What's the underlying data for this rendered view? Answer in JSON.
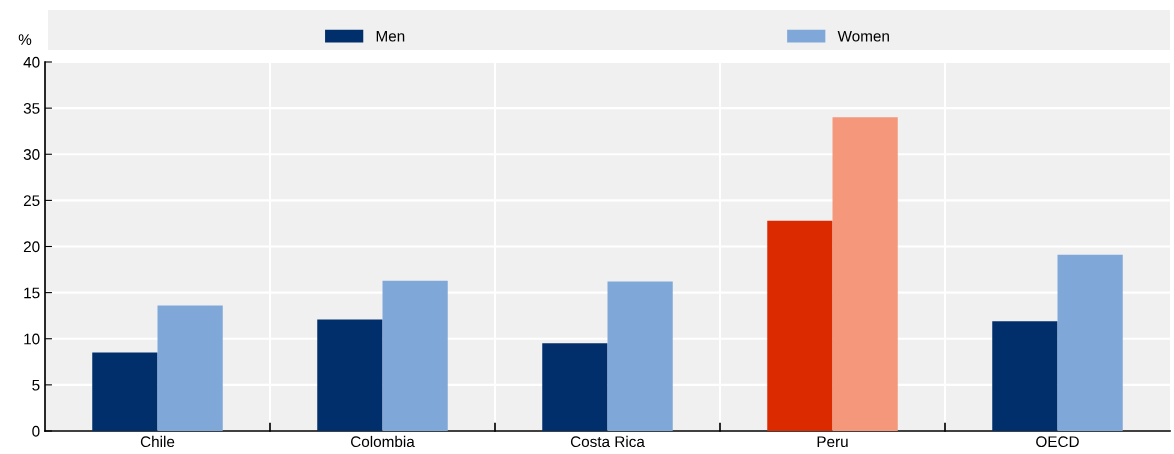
{
  "chart_data": {
    "type": "bar",
    "ylabel": "%",
    "categories": [
      "Chile",
      "Colombia",
      "Costa Rica",
      "Peru",
      "OECD"
    ],
    "series": [
      {
        "name": "Men",
        "color": "#002f6c",
        "colors": [
          "#002f6c",
          "#002f6c",
          "#002f6c",
          "#dc2a00",
          "#002f6c"
        ],
        "values": [
          8.5,
          12.1,
          9.5,
          22.8,
          11.9
        ]
      },
      {
        "name": "Women",
        "color": "#7fa8d9",
        "colors": [
          "#7fa8d9",
          "#7fa8d9",
          "#7fa8d9",
          "#f5977a",
          "#7fa8d9"
        ],
        "values": [
          13.6,
          16.3,
          16.2,
          34.0,
          19.1
        ]
      }
    ],
    "ylim": [
      0,
      40
    ],
    "yticks": [
      0,
      5,
      10,
      15,
      20,
      25,
      30,
      35,
      40
    ],
    "grid": true,
    "legend": "top"
  }
}
